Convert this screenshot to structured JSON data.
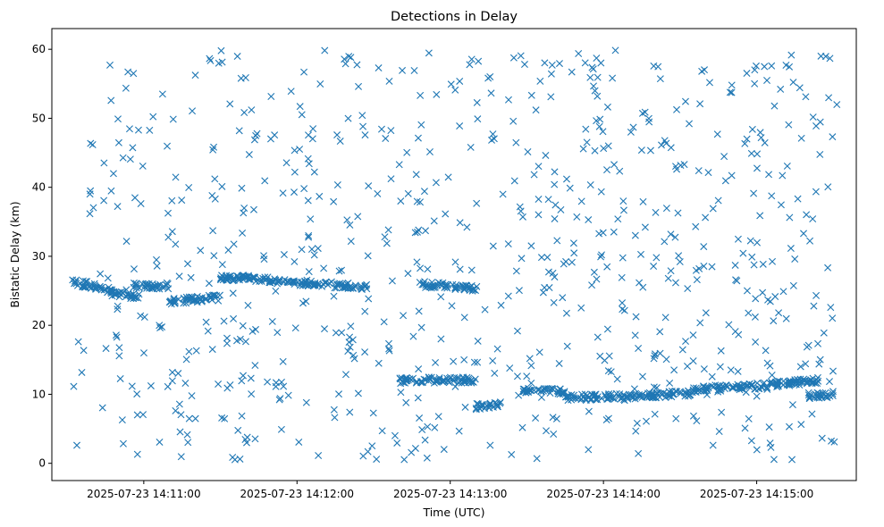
{
  "chart_data": {
    "type": "scatter",
    "title": "Detections in Delay",
    "xlabel": "Time (UTC)",
    "ylabel": "Bistatic Delay (km)",
    "marker": "x",
    "color": "#1f77b4",
    "grid": false,
    "legend": "none",
    "xlim": [
      "2025-07-23 14:10:24",
      "2025-07-23 14:15:39"
    ],
    "ylim": [
      -2.5,
      63
    ],
    "x_ticks": [
      "2025-07-23 14:11:00",
      "2025-07-23 14:12:00",
      "2025-07-23 14:13:00",
      "2025-07-23 14:14:00",
      "2025-07-23 14:15:00"
    ],
    "y_ticks": [
      0,
      10,
      20,
      30,
      40,
      50,
      60
    ],
    "time_range": [
      "2025-07-23 14:10:32",
      "2025-07-23 14:15:32"
    ],
    "tracks": [
      {
        "times": [
          "2025-07-23 14:10:32",
          "2025-07-23 14:10:38",
          "2025-07-23 14:10:50",
          "2025-07-23 14:11:00"
        ],
        "delays": [
          26.2,
          25.9,
          24.5,
          24.0
        ]
      },
      {
        "times": [
          "2025-07-23 14:10:56",
          "2025-07-23 14:11:10"
        ],
        "delays": [
          25.7,
          25.7
        ]
      },
      {
        "times": [
          "2025-07-23 14:11:10",
          "2025-07-23 14:11:30"
        ],
        "delays": [
          23.5,
          24.0
        ]
      },
      {
        "times": [
          "2025-07-23 14:11:30",
          "2025-07-23 14:11:40",
          "2025-07-23 14:11:58",
          "2025-07-23 14:12:12",
          "2025-07-23 14:12:28"
        ],
        "delays": [
          27.0,
          26.8,
          26.3,
          25.9,
          25.5
        ]
      },
      {
        "times": [
          "2025-07-23 14:12:48",
          "2025-07-23 14:13:10"
        ],
        "delays": [
          26.0,
          25.3
        ]
      },
      {
        "times": [
          "2025-07-23 14:12:40",
          "2025-07-23 14:13:10"
        ],
        "delays": [
          12.0,
          12.1
        ]
      },
      {
        "times": [
          "2025-07-23 14:13:10",
          "2025-07-23 14:13:20"
        ],
        "delays": [
          8.2,
          8.5
        ]
      },
      {
        "times": [
          "2025-07-23 14:13:28",
          "2025-07-23 14:13:45"
        ],
        "delays": [
          10.5,
          10.4
        ]
      },
      {
        "times": [
          "2025-07-23 14:13:45",
          "2025-07-23 14:14:10",
          "2025-07-23 14:14:35"
        ],
        "delays": [
          9.5,
          9.7,
          10.2
        ]
      },
      {
        "times": [
          "2025-07-23 14:14:35",
          "2025-07-23 14:15:00",
          "2025-07-23 14:15:25"
        ],
        "delays": [
          10.7,
          11.2,
          12.0
        ]
      },
      {
        "times": [
          "2025-07-23 14:15:20",
          "2025-07-23 14:15:30"
        ],
        "delays": [
          9.8,
          10.0
        ]
      }
    ]
  }
}
